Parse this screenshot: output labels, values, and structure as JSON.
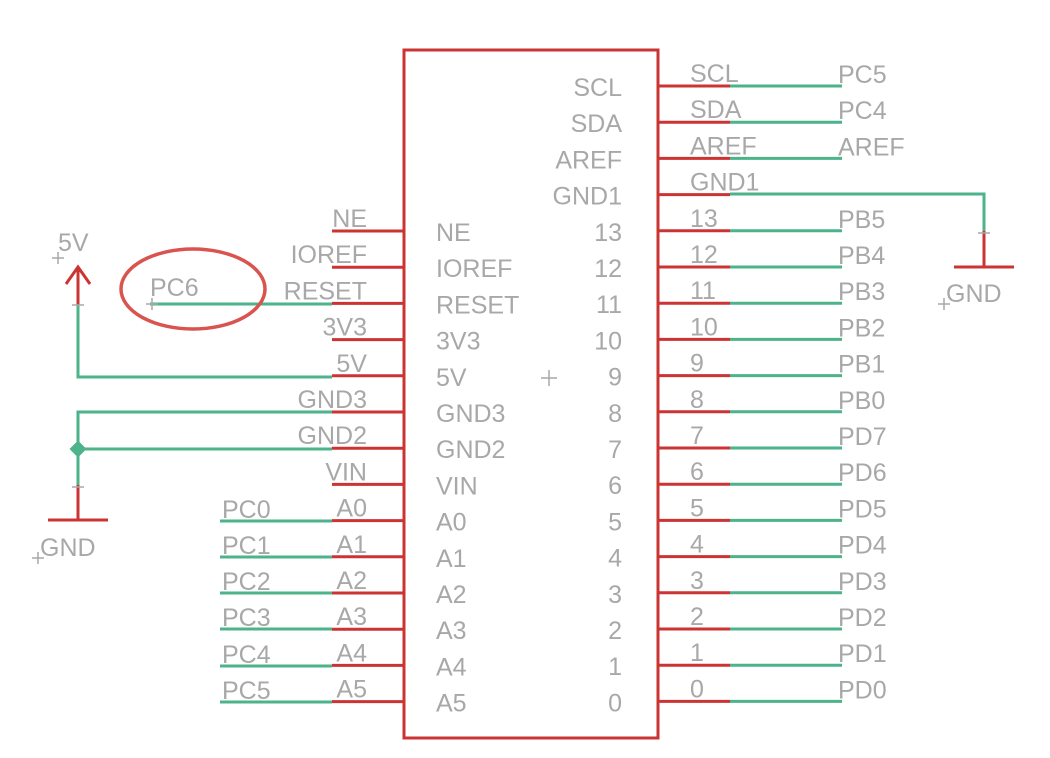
{
  "chip": {
    "left_pins": [
      {
        "outer": "NE",
        "inner": "NE"
      },
      {
        "outer": "IOREF",
        "inner": "IOREF"
      },
      {
        "outer": "RESET",
        "inner": "RESET"
      },
      {
        "outer": "3V3",
        "inner": "3V3"
      },
      {
        "outer": "5V",
        "inner": "5V"
      },
      {
        "outer": "GND3",
        "inner": "GND3"
      },
      {
        "outer": "GND2",
        "inner": "GND2"
      },
      {
        "outer": "VIN",
        "inner": "VIN"
      },
      {
        "outer": "A0",
        "inner": "A0"
      },
      {
        "outer": "A1",
        "inner": "A1"
      },
      {
        "outer": "A2",
        "inner": "A2"
      },
      {
        "outer": "A3",
        "inner": "A3"
      },
      {
        "outer": "A4",
        "inner": "A4"
      },
      {
        "outer": "A5",
        "inner": "A5"
      }
    ],
    "right_pins": [
      {
        "inner": "SCL",
        "outer": "SCL",
        "net": "PC5"
      },
      {
        "inner": "SDA",
        "outer": "SDA",
        "net": "PC4"
      },
      {
        "inner": "AREF",
        "outer": "AREF",
        "net": "AREF"
      },
      {
        "inner": "GND1",
        "outer": "GND1",
        "net": ""
      },
      {
        "inner": "13",
        "outer": "13",
        "net": "PB5"
      },
      {
        "inner": "12",
        "outer": "12",
        "net": "PB4"
      },
      {
        "inner": "11",
        "outer": "11",
        "net": "PB3"
      },
      {
        "inner": "10",
        "outer": "10",
        "net": "PB2"
      },
      {
        "inner": "9",
        "outer": "9",
        "net": "PB1"
      },
      {
        "inner": "8",
        "outer": "8",
        "net": "PB0"
      },
      {
        "inner": "7",
        "outer": "7",
        "net": "PD7"
      },
      {
        "inner": "6",
        "outer": "6",
        "net": "PD6"
      },
      {
        "inner": "5",
        "outer": "5",
        "net": "PD5"
      },
      {
        "inner": "4",
        "outer": "4",
        "net": "PD4"
      },
      {
        "inner": "3",
        "outer": "3",
        "net": "PD3"
      },
      {
        "inner": "2",
        "outer": "2",
        "net": "PD2"
      },
      {
        "inner": "1",
        "outer": "1",
        "net": "PD1"
      },
      {
        "inner": "0",
        "outer": "0",
        "net": "PD0"
      }
    ]
  },
  "left_nets": {
    "reset": "PC6",
    "a0": "PC0",
    "a1": "PC1",
    "a2": "PC2",
    "a3": "PC3",
    "a4": "PC4",
    "a5": "PC5"
  },
  "power": {
    "supply_label": "5V",
    "ground_left_label": "GND",
    "ground_right_label": "GND"
  },
  "colors": {
    "pin": "#cc3333",
    "wire": "#4cb38a",
    "text": "#a8a8a8",
    "highlight": "#d9534f"
  }
}
